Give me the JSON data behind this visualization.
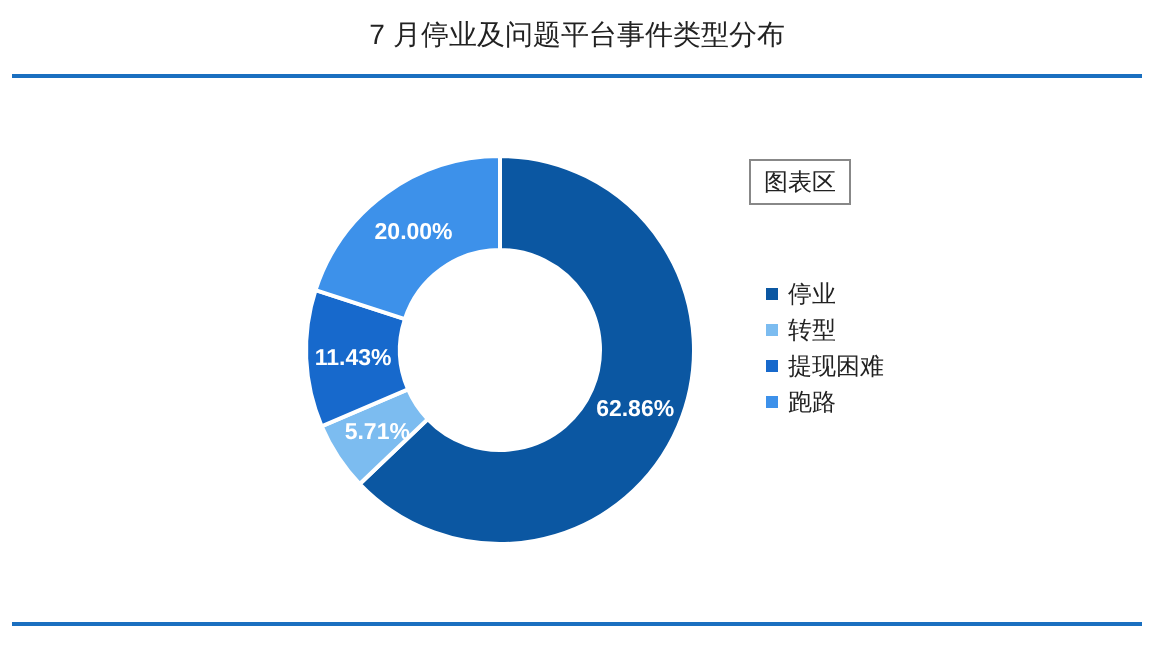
{
  "chart_data": {
    "type": "donut",
    "title": "7 月停业及问题平台事件类型分布",
    "categories": [
      "停业",
      "转型",
      "提现困难",
      "跑路"
    ],
    "values": [
      62.86,
      5.71,
      11.43,
      20.0
    ],
    "value_labels": [
      "62.86%",
      "5.71%",
      "11.43%",
      "20.00%"
    ],
    "colors": [
      "#0b57a2",
      "#7cbcf0",
      "#1769cc",
      "#3d91ea"
    ],
    "legend": "right",
    "annotations": [
      "图表区"
    ]
  }
}
